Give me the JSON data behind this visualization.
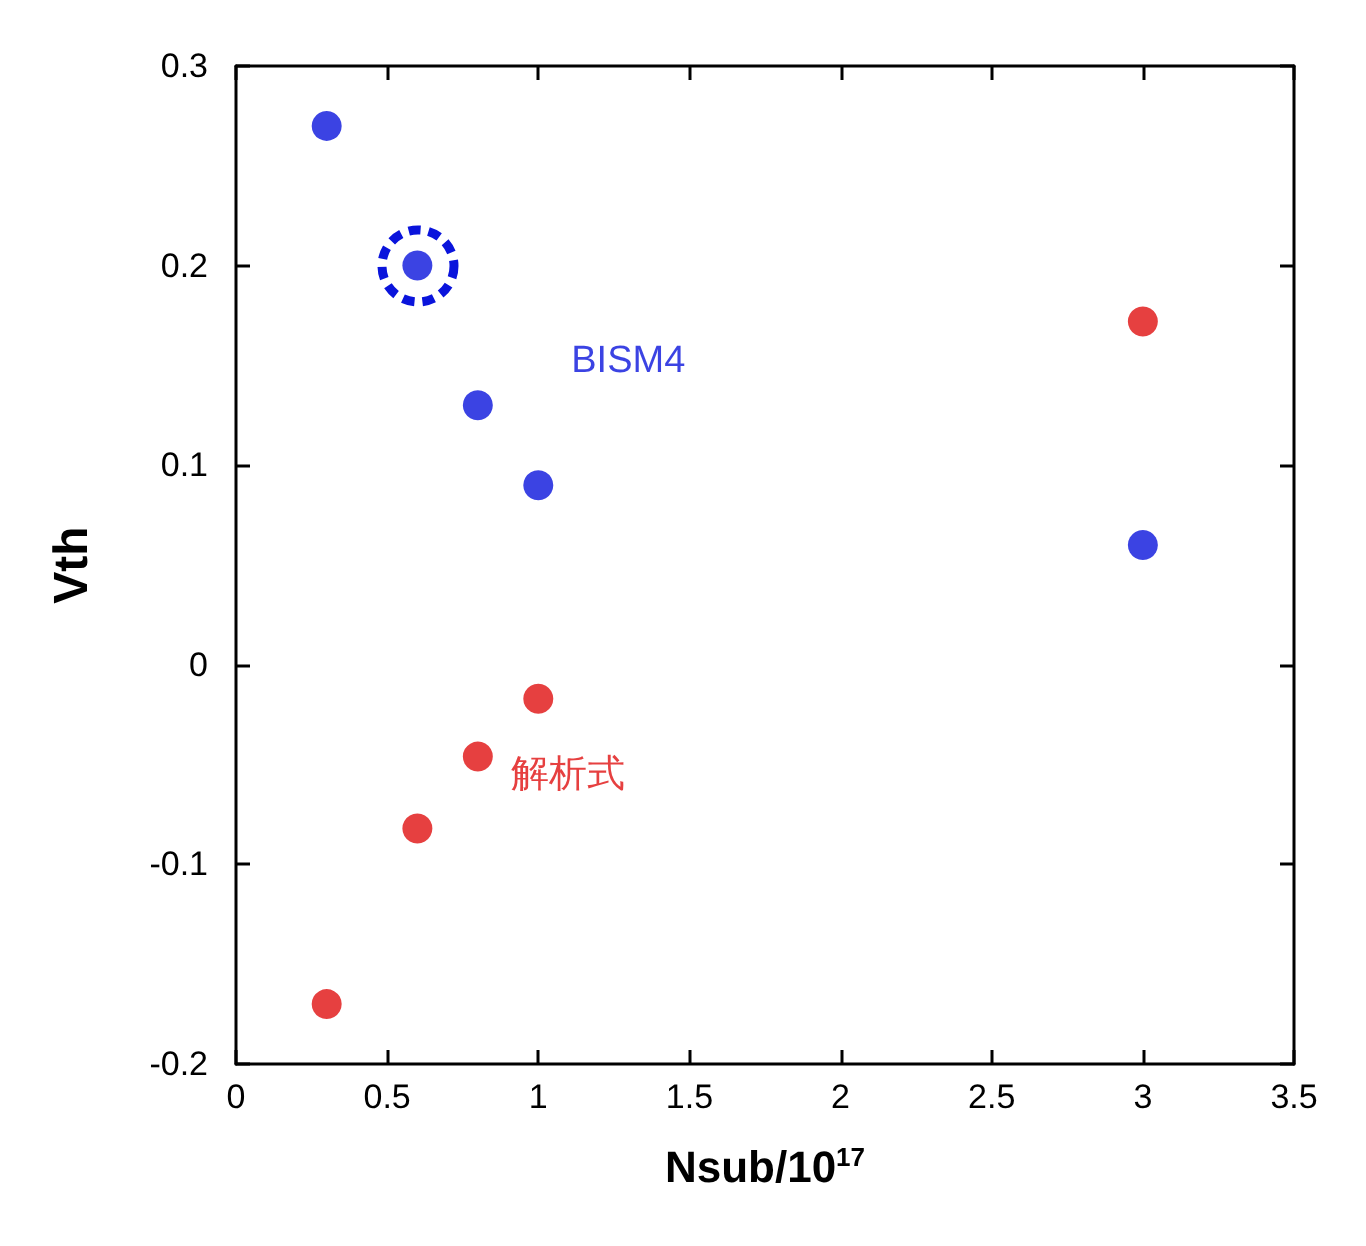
{
  "chart_data": {
    "type": "scatter",
    "xlabel": "Nsub/10$^{17}$",
    "ylabel": "Vth",
    "x": [
      0.3,
      0.6,
      0.8,
      1.0,
      3.0
    ],
    "series": [
      {
        "name": "BISM4",
        "color": "#0a14dc",
        "values": [
          0.27,
          0.2,
          0.13,
          0.09,
          0.06
        ]
      },
      {
        "name": "解析式",
        "color": "#e01010",
        "values": [
          -0.17,
          -0.082,
          -0.046,
          -0.017,
          0.172
        ]
      }
    ],
    "xlim": [
      0,
      3.5
    ],
    "xticks": [
      0,
      0.5,
      1,
      1.5,
      2,
      2.5,
      3,
      3.5
    ],
    "ylim": [
      -0.2,
      0.3
    ],
    "yticks": [
      -0.2,
      -0.1,
      0,
      0.1,
      0.2,
      0.3
    ],
    "grid": false,
    "legend": false,
    "marker": "circle"
  }
}
